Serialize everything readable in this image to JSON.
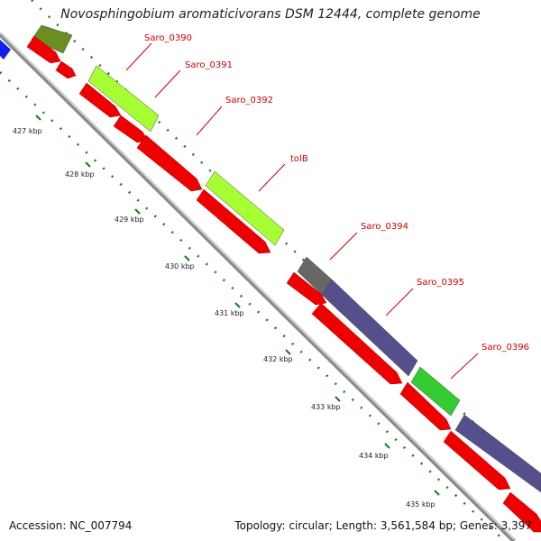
{
  "title": "Novosphingobium aromaticivorans DSM 12444, complete genome",
  "footer": {
    "accession": "Accession: NC_007794",
    "summary": "Topology: circular; Length: 3,561,584 bp; Genes: 3,397"
  },
  "colors": {
    "backbone": "#8a8a8a",
    "tick": "#1a7a1a",
    "cds": "#ee0000",
    "label": "#cc0000",
    "olive": "#6b8e23",
    "lime": "#a6ff33",
    "gray": "#666666",
    "purple": "#55508c",
    "green": "#33cc33",
    "blue": "#1020ee"
  },
  "kbp_ticks": [
    "427 kbp",
    "428 kbp",
    "429 kbp",
    "430 kbp",
    "431 kbp",
    "432 kbp",
    "433 kbp",
    "434 kbp",
    "435 kbp"
  ],
  "gene_labels": [
    "Saro_0390",
    "Saro_0391",
    "Saro_0392",
    "tolB",
    "Saro_0394",
    "Saro_0395",
    "Saro_0396"
  ]
}
